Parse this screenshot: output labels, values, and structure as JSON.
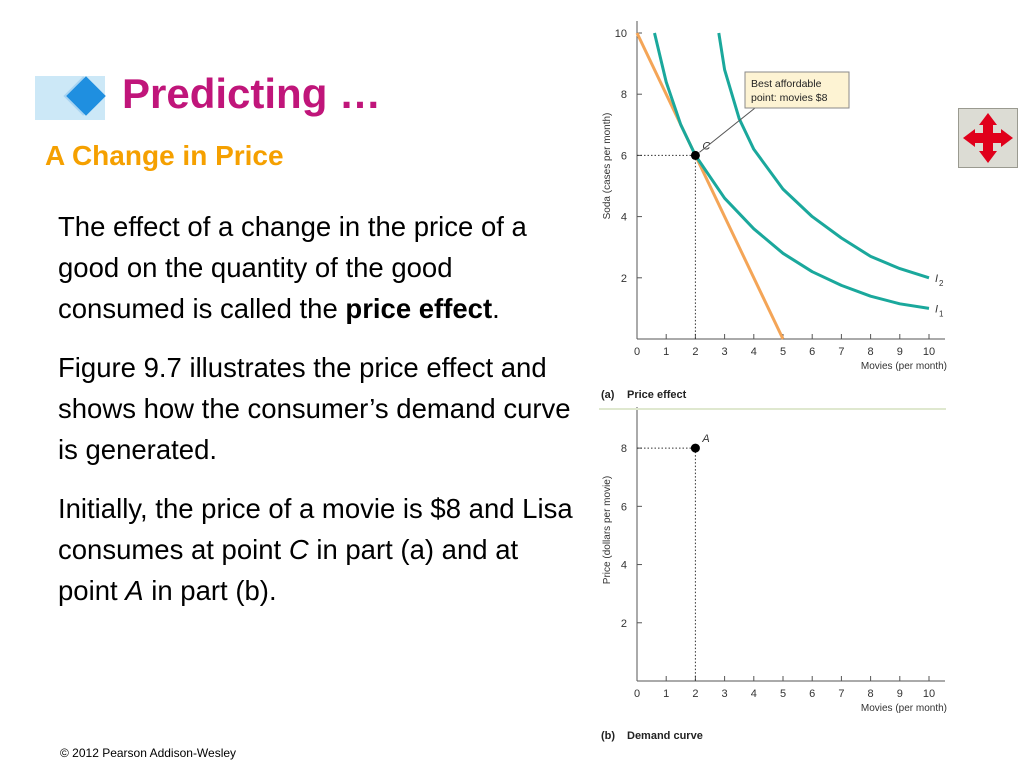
{
  "slide": {
    "title": "Predicting …",
    "subtitle": "A Change in Price",
    "para1_pre": "The effect of a change in the price of a good on the quantity of the good consumed is called the ",
    "para1_bold": "price effect",
    "para1_post": ".",
    "para2": "Figure 9.7 illustrates the price effect and shows how the consumer’s demand curve is generated.",
    "para3_a": "Initially, the price of a movie is $8 and Lisa consumes at point ",
    "para3_c": "C",
    "para3_b": " in part (a) and at point ",
    "para3_d": "A",
    "para3_e": " in part (b).",
    "copyright": "© 2012 Pearson Addison-Wesley",
    "nav_icon": "move-arrows-icon"
  },
  "colors": {
    "title": "#c0157a",
    "subtitle": "#f5a000",
    "budget_line": "#f4a557",
    "indifference": "#1aa89c",
    "nav_arrows": "#e0001b"
  },
  "chart_data": [
    {
      "type": "line",
      "panel_label_prefix": "(a)",
      "panel_label": "Price effect",
      "xlabel": "Movies (per month)",
      "ylabel": "Soda (cases per month)",
      "xlim": [
        0,
        10
      ],
      "ylim": [
        0,
        10
      ],
      "xticks": [
        0,
        1,
        2,
        3,
        4,
        5,
        6,
        7,
        8,
        9,
        10
      ],
      "yticks": [
        2,
        4,
        6,
        8,
        10
      ],
      "series": [
        {
          "kind": "budget",
          "x": [
            0,
            5
          ],
          "y": [
            10,
            0
          ]
        },
        {
          "kind": "indifference",
          "name": "I1",
          "x": [
            0.6,
            1,
            1.5,
            2,
            3,
            4,
            5,
            6,
            7,
            8,
            9,
            10
          ],
          "y": [
            10,
            8.4,
            7,
            6,
            4.6,
            3.6,
            2.8,
            2.2,
            1.75,
            1.4,
            1.15,
            1.0
          ]
        },
        {
          "kind": "indifference",
          "name": "I2",
          "x": [
            2.8,
            3,
            3.5,
            4,
            5,
            6,
            7,
            8,
            9,
            10
          ],
          "y": [
            10,
            8.8,
            7.2,
            6.2,
            4.9,
            4.0,
            3.3,
            2.7,
            2.3,
            2.0
          ]
        }
      ],
      "points": [
        {
          "label": "C",
          "x": 2,
          "y": 6
        }
      ],
      "annotation": {
        "line1": "Best affordable",
        "line2": "point: movies $8"
      }
    },
    {
      "type": "scatter",
      "panel_label_prefix": "(b)",
      "panel_label": "Demand curve",
      "xlabel": "Movies (per month)",
      "ylabel": "Price (dollars per movie)",
      "xlim": [
        0,
        10
      ],
      "ylim": [
        0,
        9
      ],
      "xticks": [
        0,
        1,
        2,
        3,
        4,
        5,
        6,
        7,
        8,
        9,
        10
      ],
      "yticks": [
        2,
        4,
        6,
        8
      ],
      "points": [
        {
          "label": "A",
          "x": 2,
          "y": 8
        }
      ]
    }
  ]
}
